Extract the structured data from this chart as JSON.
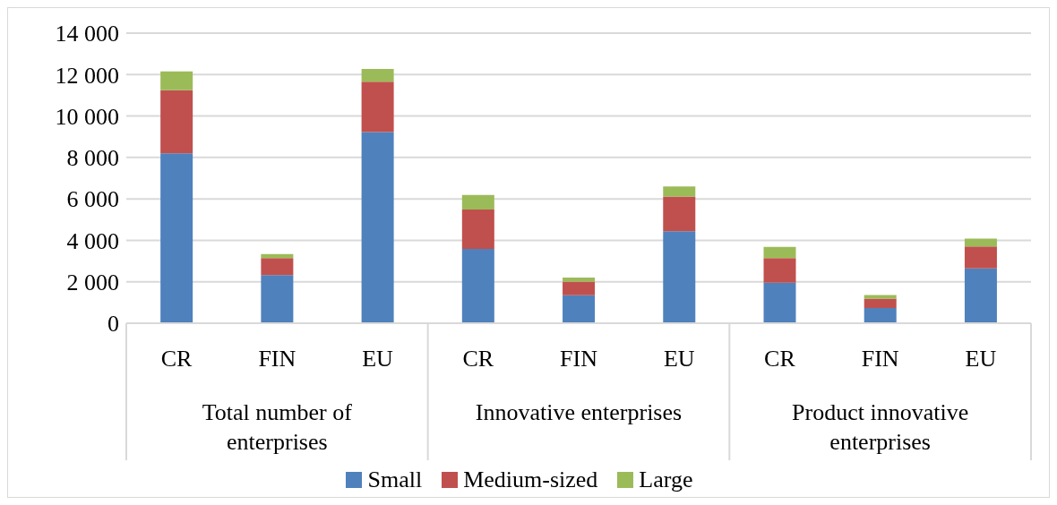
{
  "chart_data": {
    "type": "bar",
    "stacked": true,
    "categories": [
      "CR",
      "FIN",
      "EU",
      "CR",
      "FIN",
      "EU",
      "CR",
      "FIN",
      "EU"
    ],
    "series": [
      {
        "name": "Small",
        "color": "#4f81bd",
        "values": [
          8200,
          2320,
          9230,
          3590,
          1350,
          4440,
          1950,
          730,
          2650
        ]
      },
      {
        "name": "Medium-sized",
        "color": "#c0504d",
        "values": [
          3050,
          820,
          2430,
          1900,
          660,
          1670,
          1190,
          460,
          1060
        ]
      },
      {
        "name": "Large",
        "color": "#9bbb59",
        "values": [
          900,
          200,
          610,
          700,
          190,
          490,
          540,
          170,
          370
        ]
      }
    ],
    "ylim": [
      0,
      14000
    ],
    "yticks": [
      0,
      {
        "value": 2000,
        "label": "2 000"
      },
      {
        "value": 4000,
        "label": "4 000"
      },
      {
        "value": 6000,
        "label": "6 000"
      },
      {
        "value": 8000,
        "label": "8 000"
      },
      {
        "value": 10000,
        "label": "10 000"
      },
      {
        "value": 12000,
        "label": "12 000"
      },
      {
        "value": 14000,
        "label": "14 000"
      }
    ],
    "annotations": [
      "Total number of enterprises",
      "Innovative enterprises",
      "Product innovative enterprises"
    ],
    "grid": "y",
    "legend": "bottom"
  }
}
